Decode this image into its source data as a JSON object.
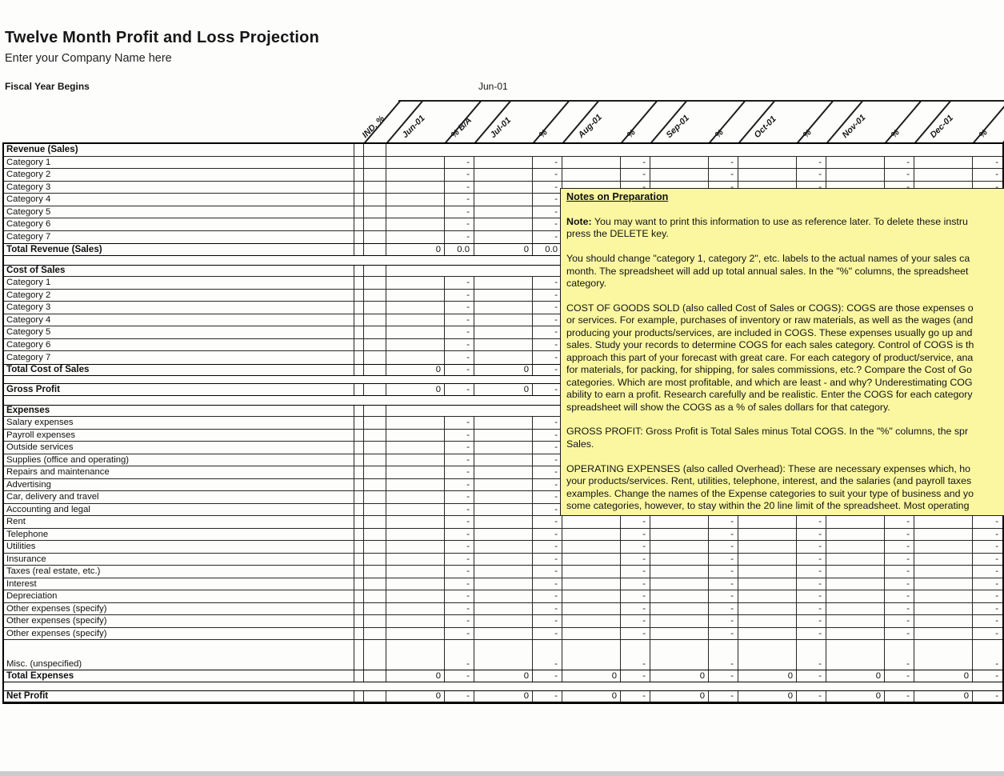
{
  "page": {
    "title": "Twelve Month Profit and Loss Projection",
    "subtitle": "Enter your Company Name here",
    "fiscal_year_label": "Fiscal Year Begins",
    "fiscal_year_value": "Jun-01"
  },
  "colors": {
    "notes_background": "#FAF7A0",
    "grid_line": "#262626",
    "thick_border": "#000000",
    "footer_strip": "#CBCBCB"
  },
  "table": {
    "column_headers": [
      "IND. %",
      "Jun-01",
      "% B/A",
      "Jul-01",
      "%",
      "Aug-01",
      "%",
      "Sep-01",
      "%",
      "Oct-01",
      "%",
      "Nov-01",
      "%",
      "Dec-01",
      "%"
    ],
    "rows": [
      {
        "type": "section",
        "label": "Revenue (Sales)"
      },
      {
        "type": "item",
        "label": "Category 1",
        "month": "",
        "pct": "-"
      },
      {
        "type": "item",
        "label": "Category 2",
        "month": "",
        "pct": "-"
      },
      {
        "type": "item",
        "label": "Category 3",
        "month": "",
        "pct": "-"
      },
      {
        "type": "item",
        "label": "Category 4",
        "month": "",
        "pct": "-"
      },
      {
        "type": "item",
        "label": "Category 5",
        "month": "",
        "pct": "-"
      },
      {
        "type": "item",
        "label": "Category 6",
        "month": "",
        "pct": "-"
      },
      {
        "type": "item",
        "label": "Category 7",
        "month": "",
        "pct": "-"
      },
      {
        "type": "total",
        "label": "Total Revenue (Sales)",
        "month": "0",
        "pct": "0.0"
      },
      {
        "type": "spacer"
      },
      {
        "type": "section",
        "label": "Cost of Sales"
      },
      {
        "type": "item",
        "label": "Category 1",
        "month": "",
        "pct": "-"
      },
      {
        "type": "item",
        "label": "Category 2",
        "month": "",
        "pct": "-"
      },
      {
        "type": "item",
        "label": "Category 3",
        "month": "",
        "pct": "-"
      },
      {
        "type": "item",
        "label": "Category 4",
        "month": "",
        "pct": "-"
      },
      {
        "type": "item",
        "label": "Category 5",
        "month": "",
        "pct": "-"
      },
      {
        "type": "item",
        "label": "Category 6",
        "month": "",
        "pct": "-"
      },
      {
        "type": "item",
        "label": "Category 7",
        "month": "",
        "pct": "-"
      },
      {
        "type": "total",
        "label": "Total Cost of Sales",
        "month": "0",
        "pct": "-"
      },
      {
        "type": "spacer"
      },
      {
        "type": "total",
        "label": "Gross Profit",
        "month": "0",
        "pct": "-"
      },
      {
        "type": "spacer"
      },
      {
        "type": "section",
        "label": "Expenses"
      },
      {
        "type": "item",
        "label": "Salary expenses",
        "month": "",
        "pct": "-"
      },
      {
        "type": "item",
        "label": "Payroll expenses",
        "month": "",
        "pct": "-"
      },
      {
        "type": "item",
        "label": "Outside services",
        "month": "",
        "pct": "-"
      },
      {
        "type": "item",
        "label": "Supplies (office and operating)",
        "month": "",
        "pct": "-"
      },
      {
        "type": "item",
        "label": "Repairs and maintenance",
        "month": "",
        "pct": "-"
      },
      {
        "type": "item",
        "label": "Advertising",
        "month": "",
        "pct": "-"
      },
      {
        "type": "item",
        "label": "Car, delivery and travel",
        "month": "",
        "pct": "-"
      },
      {
        "type": "item",
        "label": "Accounting and legal",
        "month": "",
        "pct": "-"
      },
      {
        "type": "item",
        "label": "Rent",
        "month": "",
        "pct": "-"
      },
      {
        "type": "item",
        "label": "Telephone",
        "month": "",
        "pct": "-"
      },
      {
        "type": "item",
        "label": "Utilities",
        "month": "",
        "pct": "-"
      },
      {
        "type": "item",
        "label": "Insurance",
        "month": "",
        "pct": "-"
      },
      {
        "type": "item",
        "label": "Taxes (real estate, etc.)",
        "month": "",
        "pct": "-"
      },
      {
        "type": "item",
        "label": "Interest",
        "month": "",
        "pct": "-"
      },
      {
        "type": "item",
        "label": "Depreciation",
        "month": "",
        "pct": "-"
      },
      {
        "type": "item",
        "label": "Other expenses (specify)",
        "month": "",
        "pct": "-"
      },
      {
        "type": "item",
        "label": "Other expenses (specify)",
        "month": "",
        "pct": "-"
      },
      {
        "type": "item",
        "label": "Other expenses (specify)",
        "month": "",
        "pct": "-"
      },
      {
        "type": "misc",
        "label": "Misc. (unspecified)",
        "month": "",
        "pct": "-"
      },
      {
        "type": "total",
        "label": "Total Expenses",
        "month": "0",
        "pct": "-"
      },
      {
        "type": "spacer"
      },
      {
        "type": "total",
        "label": "Net Profit",
        "month": "0",
        "pct": "-"
      }
    ]
  },
  "notes": {
    "title": "Notes on Preparation",
    "lines": [
      {
        "bold": "Note:",
        "text": " You may want to print this information to use as reference later. To delete these instru"
      },
      {
        "text": "press the DELETE key."
      },
      {
        "text": ""
      },
      {
        "text": "You should change \"category 1, category 2\", etc. labels to the actual names of your sales ca"
      },
      {
        "text": "month. The spreadsheet will add up total annual sales. In the \"%\" columns, the spreadsheet"
      },
      {
        "text": "category."
      },
      {
        "text": ""
      },
      {
        "text": "COST OF GOODS SOLD (also called Cost of Sales or COGS): COGS are those expenses o"
      },
      {
        "text": "or services. For example, purchases of inventory or raw materials, as well as the wages (and"
      },
      {
        "text": "producing your products/services, are included in COGS. These expenses usually go up and"
      },
      {
        "text": "sales. Study your records to determine COGS for each sales category. Control of COGS is th"
      },
      {
        "text": "approach this part of your forecast with great care. For each category of product/service, ana"
      },
      {
        "text": "for materials, for packing, for shipping, for sales commissions, etc.? Compare the Cost of Go"
      },
      {
        "text": "categories. Which are most profitable, and which are least - and why? Underestimating COG"
      },
      {
        "text": "ability to earn a profit. Research carefully and be realistic. Enter the COGS for each category"
      },
      {
        "text": "spreadsheet will show the COGS as a % of sales dollars for that category."
      },
      {
        "text": ""
      },
      {
        "text": "GROSS PROFIT: Gross Profit is Total Sales minus Total COGS. In the \"%\" columns, the spr"
      },
      {
        "text": "Sales."
      },
      {
        "text": ""
      },
      {
        "text": "OPERATING EXPENSES (also called Overhead): These are necessary expenses which, ho"
      },
      {
        "text": "your products/services. Rent, utilities, telephone, interest, and the salaries (and payroll taxes"
      },
      {
        "text": "examples. Change the names of the Expense categories to suit your type of business and yo"
      },
      {
        "text": "some categories, however, to stay within the 20 line limit of the spreadsheet. Most operating"
      }
    ]
  }
}
